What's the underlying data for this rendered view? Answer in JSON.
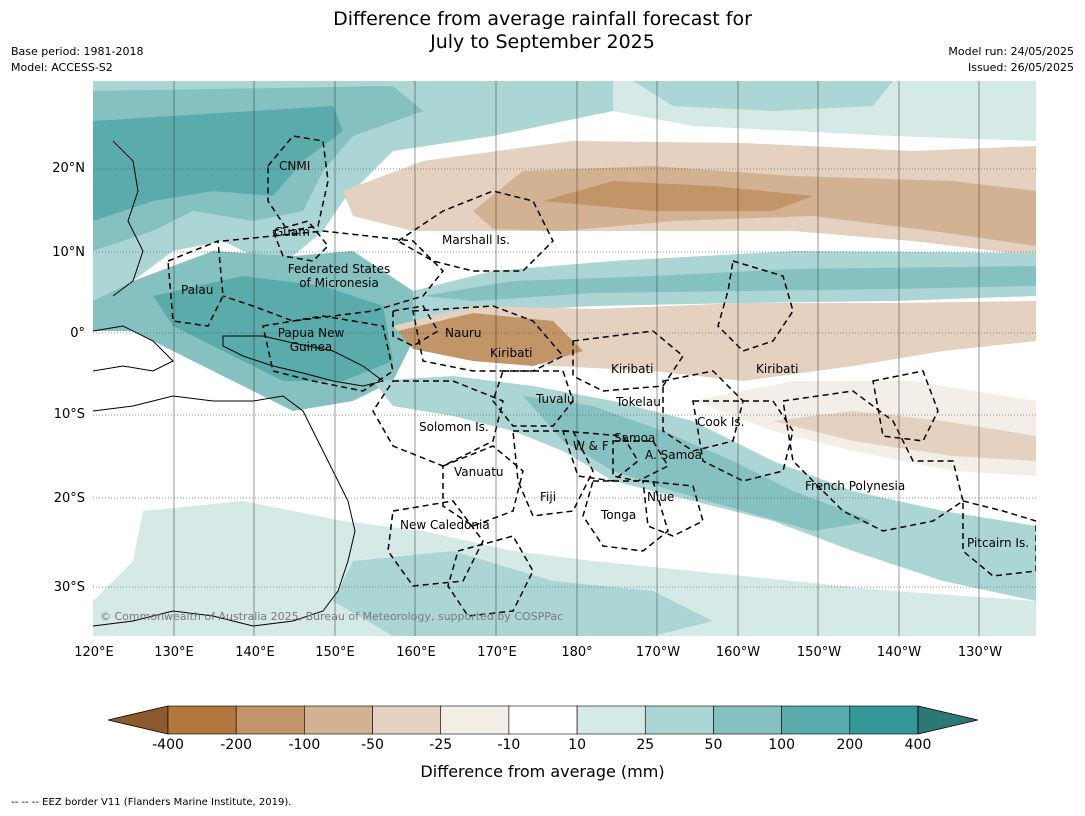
{
  "title_line1": "Difference from average rainfall forecast for",
  "title_line2": "July to September 2025",
  "base_period": "Base period: 1981-2018",
  "model": "Model: ACCESS-S2",
  "model_run": "Model run: 24/05/2025",
  "issued": "Issued: 26/05/2025",
  "latitude_ticks": [
    "20°N",
    "10°N",
    "0°",
    "10°S",
    "20°S",
    "30°S"
  ],
  "longitude_ticks": [
    "120°E",
    "130°E",
    "140°E",
    "150°E",
    "160°E",
    "170°E",
    "180°",
    "170°W",
    "160°W",
    "150°W",
    "140°W",
    "130°W"
  ],
  "places": [
    "CNMI",
    "Guam",
    "Marshall Is.",
    "Palau",
    "Federated States of Micronesia",
    "Papua New Guinea",
    "Nauru",
    "Kiribati",
    "Kiribati",
    "Kiribati",
    "Tuvalu",
    "Tokelau",
    "Solomon Is.",
    "W & F",
    "Samoa",
    "A. Samoa",
    "Cook Is.",
    "Vanuatu",
    "Fiji",
    "Niue",
    "French Polynesia",
    "New Caledonia",
    "Tonga",
    "Pitcairn Is."
  ],
  "copyright": "© Commonwealth of Australia 2025, Bureau of Meteorology, supported by COSPPac",
  "colorbar": {
    "ticks": [
      "-400",
      "-200",
      "-100",
      "-50",
      "-25",
      "-10",
      "10",
      "25",
      "50",
      "100",
      "200",
      "400"
    ],
    "colors": [
      "#b0773f",
      "#c19567",
      "#d2b293",
      "#e4d1c0",
      "#f3eee8",
      "#ffffff",
      "#d5e9e7",
      "#acd6d5",
      "#84c1c0",
      "#5aacac",
      "#359898"
    ],
    "low_extend_color": "#8e5a2c",
    "high_extend_color": "#2c7877",
    "label": "Difference from average (mm)"
  },
  "footnote": "--  --  -- EEZ border V11 (Flanders Marine Institute, 2019)."
}
